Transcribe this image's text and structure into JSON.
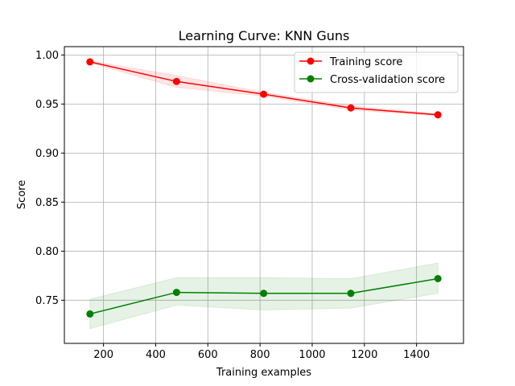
{
  "chart_data": {
    "type": "line",
    "title": "Learning Curve: KNN Guns",
    "xlabel": "Training examples",
    "ylabel": "Score",
    "xlim": [
      50,
      1580
    ],
    "ylim": [
      0.706,
      1.0085
    ],
    "xticks": [
      200,
      400,
      600,
      800,
      1000,
      1200,
      1400
    ],
    "xtick_labels": [
      "200",
      "400",
      "600",
      "800",
      "1000",
      "1200",
      "1400"
    ],
    "yticks": [
      0.75,
      0.8,
      0.85,
      0.9,
      0.95,
      1.0
    ],
    "ytick_labels": [
      "0.75",
      "0.80",
      "0.85",
      "0.90",
      "0.95",
      "1.00"
    ],
    "grid": true,
    "legend_position": "top-right",
    "x": [
      148,
      480,
      814,
      1148,
      1482
    ],
    "series": [
      {
        "name": "Training score",
        "color": "#ff0000",
        "band_color": "#ff0000",
        "values": [
          0.993,
          0.973,
          0.96,
          0.946,
          0.939
        ],
        "lower": [
          0.992,
          0.967,
          0.958,
          0.944,
          0.938
        ],
        "upper": [
          0.994,
          0.979,
          0.962,
          0.948,
          0.94
        ]
      },
      {
        "name": "Cross-validation score",
        "color": "#008000",
        "band_color": "#008000",
        "values": [
          0.736,
          0.758,
          0.757,
          0.757,
          0.772
        ],
        "lower": [
          0.721,
          0.745,
          0.74,
          0.742,
          0.757
        ],
        "upper": [
          0.751,
          0.773,
          0.773,
          0.772,
          0.788
        ]
      }
    ]
  }
}
